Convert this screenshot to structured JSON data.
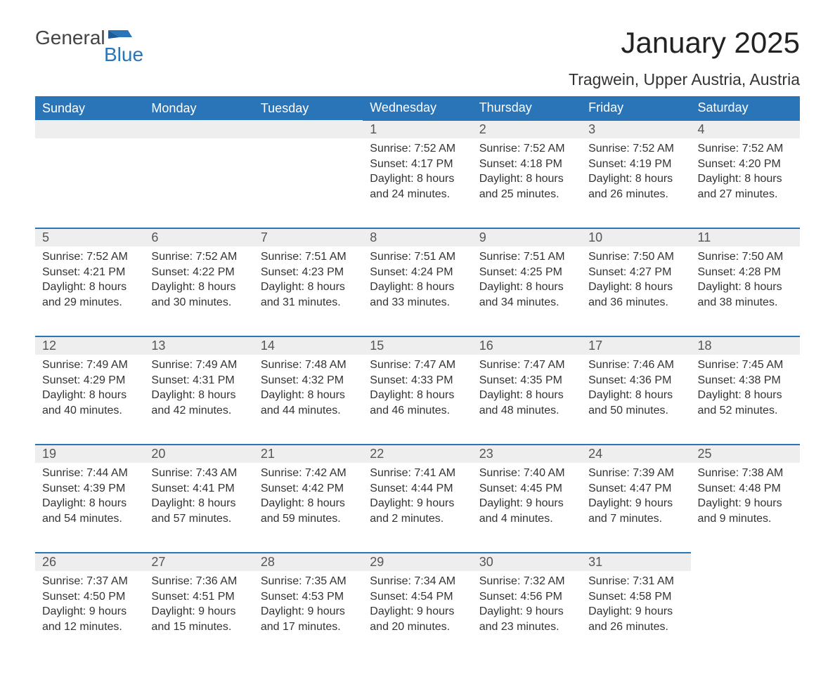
{
  "logo": {
    "line1": "General",
    "line2": "Blue"
  },
  "title": "January 2025",
  "location": "Tragwein, Upper Austria, Austria",
  "colors": {
    "header_bg": "#2a74b8",
    "header_text": "#ffffff",
    "daynum_bg": "#eeeeee",
    "daynum_border": "#2a74b8",
    "body_text": "#333333",
    "logo_gray": "#444444",
    "logo_blue": "#2a74b8"
  },
  "day_names": [
    "Sunday",
    "Monday",
    "Tuesday",
    "Wednesday",
    "Thursday",
    "Friday",
    "Saturday"
  ],
  "weeks": [
    [
      null,
      null,
      null,
      {
        "d": "1",
        "sr": "7:52 AM",
        "ss": "4:17 PM",
        "dl": "8 hours and 24 minutes."
      },
      {
        "d": "2",
        "sr": "7:52 AM",
        "ss": "4:18 PM",
        "dl": "8 hours and 25 minutes."
      },
      {
        "d": "3",
        "sr": "7:52 AM",
        "ss": "4:19 PM",
        "dl": "8 hours and 26 minutes."
      },
      {
        "d": "4",
        "sr": "7:52 AM",
        "ss": "4:20 PM",
        "dl": "8 hours and 27 minutes."
      }
    ],
    [
      {
        "d": "5",
        "sr": "7:52 AM",
        "ss": "4:21 PM",
        "dl": "8 hours and 29 minutes."
      },
      {
        "d": "6",
        "sr": "7:52 AM",
        "ss": "4:22 PM",
        "dl": "8 hours and 30 minutes."
      },
      {
        "d": "7",
        "sr": "7:51 AM",
        "ss": "4:23 PM",
        "dl": "8 hours and 31 minutes."
      },
      {
        "d": "8",
        "sr": "7:51 AM",
        "ss": "4:24 PM",
        "dl": "8 hours and 33 minutes."
      },
      {
        "d": "9",
        "sr": "7:51 AM",
        "ss": "4:25 PM",
        "dl": "8 hours and 34 minutes."
      },
      {
        "d": "10",
        "sr": "7:50 AM",
        "ss": "4:27 PM",
        "dl": "8 hours and 36 minutes."
      },
      {
        "d": "11",
        "sr": "7:50 AM",
        "ss": "4:28 PM",
        "dl": "8 hours and 38 minutes."
      }
    ],
    [
      {
        "d": "12",
        "sr": "7:49 AM",
        "ss": "4:29 PM",
        "dl": "8 hours and 40 minutes."
      },
      {
        "d": "13",
        "sr": "7:49 AM",
        "ss": "4:31 PM",
        "dl": "8 hours and 42 minutes."
      },
      {
        "d": "14",
        "sr": "7:48 AM",
        "ss": "4:32 PM",
        "dl": "8 hours and 44 minutes."
      },
      {
        "d": "15",
        "sr": "7:47 AM",
        "ss": "4:33 PM",
        "dl": "8 hours and 46 minutes."
      },
      {
        "d": "16",
        "sr": "7:47 AM",
        "ss": "4:35 PM",
        "dl": "8 hours and 48 minutes."
      },
      {
        "d": "17",
        "sr": "7:46 AM",
        "ss": "4:36 PM",
        "dl": "8 hours and 50 minutes."
      },
      {
        "d": "18",
        "sr": "7:45 AM",
        "ss": "4:38 PM",
        "dl": "8 hours and 52 minutes."
      }
    ],
    [
      {
        "d": "19",
        "sr": "7:44 AM",
        "ss": "4:39 PM",
        "dl": "8 hours and 54 minutes."
      },
      {
        "d": "20",
        "sr": "7:43 AM",
        "ss": "4:41 PM",
        "dl": "8 hours and 57 minutes."
      },
      {
        "d": "21",
        "sr": "7:42 AM",
        "ss": "4:42 PM",
        "dl": "8 hours and 59 minutes."
      },
      {
        "d": "22",
        "sr": "7:41 AM",
        "ss": "4:44 PM",
        "dl": "9 hours and 2 minutes."
      },
      {
        "d": "23",
        "sr": "7:40 AM",
        "ss": "4:45 PM",
        "dl": "9 hours and 4 minutes."
      },
      {
        "d": "24",
        "sr": "7:39 AM",
        "ss": "4:47 PM",
        "dl": "9 hours and 7 minutes."
      },
      {
        "d": "25",
        "sr": "7:38 AM",
        "ss": "4:48 PM",
        "dl": "9 hours and 9 minutes."
      }
    ],
    [
      {
        "d": "26",
        "sr": "7:37 AM",
        "ss": "4:50 PM",
        "dl": "9 hours and 12 minutes."
      },
      {
        "d": "27",
        "sr": "7:36 AM",
        "ss": "4:51 PM",
        "dl": "9 hours and 15 minutes."
      },
      {
        "d": "28",
        "sr": "7:35 AM",
        "ss": "4:53 PM",
        "dl": "9 hours and 17 minutes."
      },
      {
        "d": "29",
        "sr": "7:34 AM",
        "ss": "4:54 PM",
        "dl": "9 hours and 20 minutes."
      },
      {
        "d": "30",
        "sr": "7:32 AM",
        "ss": "4:56 PM",
        "dl": "9 hours and 23 minutes."
      },
      {
        "d": "31",
        "sr": "7:31 AM",
        "ss": "4:58 PM",
        "dl": "9 hours and 26 minutes."
      },
      null
    ]
  ],
  "labels": {
    "sunrise": "Sunrise: ",
    "sunset": "Sunset: ",
    "daylight": "Daylight: "
  }
}
